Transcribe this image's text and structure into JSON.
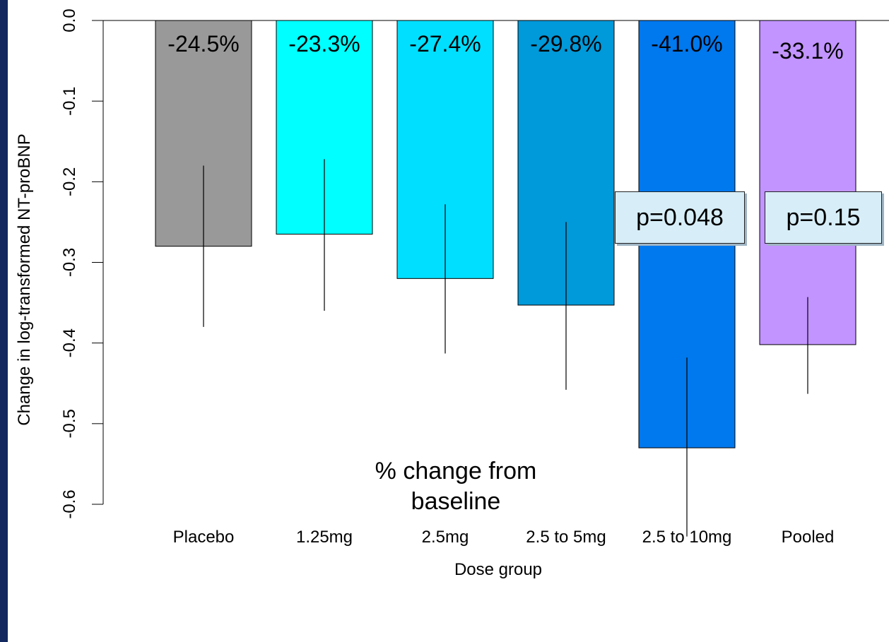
{
  "chart_data": {
    "type": "bar",
    "categories": [
      "Placebo",
      "1.25mg",
      "2.5mg",
      "2.5 to 5mg",
      "2.5 to 10mg",
      "Pooled"
    ],
    "values": [
      -0.28,
      -0.265,
      -0.32,
      -0.353,
      -0.53,
      -0.402
    ],
    "error_low": [
      -0.38,
      -0.36,
      -0.413,
      -0.458,
      -0.64,
      -0.463
    ],
    "error_high": [
      -0.18,
      -0.172,
      -0.228,
      -0.25,
      -0.418,
      -0.343
    ],
    "data_labels": [
      "-24.5%",
      "-23.3%",
      "-27.4%",
      "-29.8%",
      "-41.0%",
      "-33.1%"
    ],
    "colors": [
      "#999999",
      "#00ffff",
      "#00dfff",
      "#0099d9",
      "#0078ee",
      "#c294ff"
    ],
    "ylim": [
      -0.6,
      0.0
    ],
    "yticks": [
      "0.0",
      "-0.1",
      "-0.2",
      "-0.3",
      "-0.4",
      "-0.5",
      "-0.6"
    ],
    "xlabel": "Dose group",
    "ylabel": "Change in log-transformed NT-proBNP",
    "annotations": {
      "note_line1": "% change from",
      "note_line2": "baseline",
      "pvalue_1": "p=0.048",
      "pvalue_2": "p=0.15"
    },
    "grid": false
  },
  "frame": {
    "band_color": "#12285e"
  }
}
